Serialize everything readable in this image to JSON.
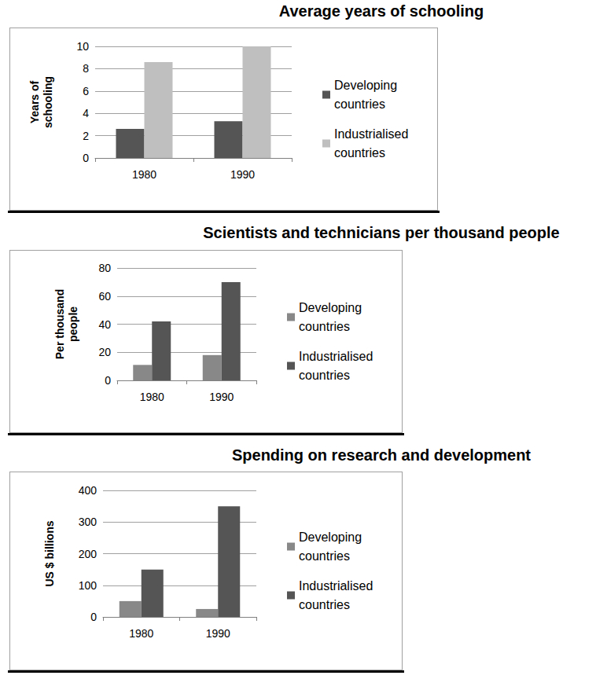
{
  "chart_data": [
    {
      "type": "bar",
      "title": "Average years of schooling",
      "categories": [
        "1980",
        "1990"
      ],
      "series": [
        {
          "name": "Developing countries",
          "color": "#555555",
          "values": [
            2.6,
            3.3
          ]
        },
        {
          "name": "Industrialised countries",
          "color": "#bfbfbf",
          "values": [
            8.6,
            10
          ]
        }
      ],
      "ylabel": "Years of schooling",
      "ylim": [
        0,
        10
      ],
      "yticks": [
        0,
        2,
        4,
        6,
        8,
        10
      ],
      "grid": true,
      "legend": "right"
    },
    {
      "type": "bar",
      "title": "Scientists and technicians per thousand people",
      "categories": [
        "1980",
        "1990"
      ],
      "series": [
        {
          "name": "Developing countries",
          "color": "#888888",
          "values": [
            11,
            18
          ]
        },
        {
          "name": "Industrialised countries",
          "color": "#555555",
          "values": [
            42,
            70
          ]
        }
      ],
      "ylabel": "Per thousand people",
      "ylim": [
        0,
        80
      ],
      "yticks": [
        0,
        20,
        40,
        60,
        80
      ],
      "grid": true,
      "legend": "right"
    },
    {
      "type": "bar",
      "title": "Spending on research and development",
      "categories": [
        "1980",
        "1990"
      ],
      "series": [
        {
          "name": "Developing countries",
          "color": "#888888",
          "values": [
            50,
            25
          ]
        },
        {
          "name": "Industrialised countries",
          "color": "#555555",
          "values": [
            150,
            350
          ]
        }
      ],
      "ylabel": "US $ billions",
      "ylim": [
        0,
        400
      ],
      "yticks": [
        0,
        100,
        200,
        300,
        400
      ],
      "grid": true,
      "legend": "right"
    }
  ]
}
